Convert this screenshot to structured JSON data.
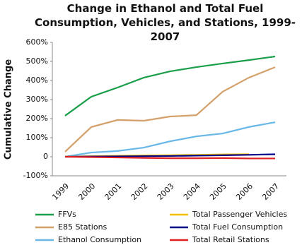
{
  "chart_data": {
    "type": "line",
    "title": "Change in Ethanol and Total Fuel Consumption, Vehicles, and Stations, 1999-2007",
    "y_label": "Cumulative Change",
    "categories": [
      "1999",
      "2000",
      "2001",
      "2002",
      "2003",
      "2004",
      "2005",
      "2006",
      "2007"
    ],
    "series": [
      {
        "name": "FFVs",
        "color": "#1a9e4a",
        "values": [
          215,
          315,
          363,
          415,
          448,
          470,
          489,
          507,
          526
        ]
      },
      {
        "name": "E85 Stations",
        "color": "#d4a06a",
        "values": [
          26,
          156,
          193,
          189,
          211,
          218,
          341,
          415,
          470
        ]
      },
      {
        "name": "Ethanol Consumption",
        "color": "#6ab8e8",
        "values": [
          0,
          22,
          30,
          48,
          81,
          107,
          122,
          156,
          181
        ]
      },
      {
        "name": "Total Passenger Vehicles",
        "color": "#f0c000",
        "values": [
          0,
          3,
          5,
          7,
          8,
          10,
          12,
          13,
          null
        ]
      },
      {
        "name": "Total Fuel Consumption",
        "color": "#00008b",
        "values": [
          0,
          1,
          2,
          3,
          4,
          6,
          8,
          10,
          13
        ]
      },
      {
        "name": "Total Retail Stations",
        "color": "#e02020",
        "values": [
          0,
          -2,
          -4,
          -6,
          -8,
          -8,
          -7,
          -9,
          -9
        ]
      }
    ],
    "ylim": [
      -100,
      600
    ],
    "yticks": [
      {
        "value": -100,
        "label": "-100%"
      },
      {
        "value": 0,
        "label": "0"
      },
      {
        "value": 100,
        "label": "100%"
      },
      {
        "value": 200,
        "label": "200%"
      },
      {
        "value": 300,
        "label": "300%"
      },
      {
        "value": 400,
        "label": "400%"
      },
      {
        "value": 500,
        "label": "500%"
      },
      {
        "value": 600,
        "label": "600%"
      }
    ],
    "grid": false
  }
}
